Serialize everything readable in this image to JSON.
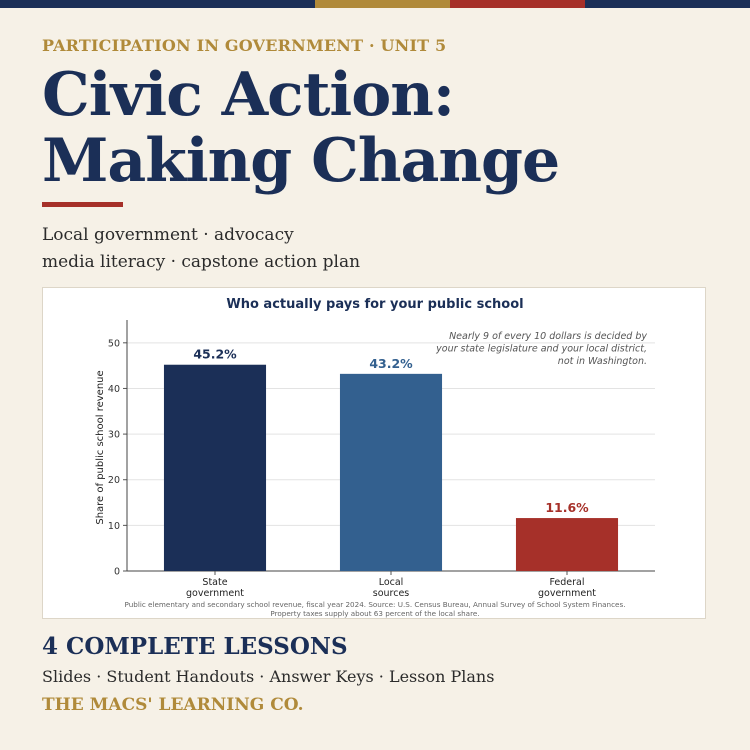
{
  "header": {
    "eyebrow": "PARTICIPATION IN GOVERNMENT  ·  UNIT 5",
    "title": "Civic Action: Making Change",
    "subtitle_line1": "Local government · advocacy",
    "subtitle_line2": "media literacy · capstone action plan"
  },
  "footer": {
    "lessons": "4 COMPLETE LESSONS",
    "materials": "Slides · Student Handouts · Answer Keys · Lesson Plans",
    "brand": "THE MACS' LEARNING CO."
  },
  "colors": {
    "navy": "#1b2f57",
    "gold": "#b08a3a",
    "red": "#a63029",
    "blue": "#33608f",
    "background": "#f6f1e7",
    "top_bar": [
      "#1b2f57",
      "#b08a3a",
      "#a63029",
      "#1b2f57"
    ]
  },
  "chart_data": {
    "type": "bar",
    "title": "Who actually pays for your public school",
    "ylabel": "Share of public school revenue",
    "xlabel": "",
    "categories": [
      [
        "State",
        "government"
      ],
      [
        "Local",
        "sources"
      ],
      [
        "Federal",
        "government"
      ]
    ],
    "values": [
      45.2,
      43.2,
      11.6
    ],
    "value_labels": [
      "45.2%",
      "43.2%",
      "11.6%"
    ],
    "bar_colors": [
      "#1b2f57",
      "#33608f",
      "#a63029"
    ],
    "ylim": [
      0,
      55
    ],
    "yticks": [
      0,
      10,
      20,
      30,
      40,
      50
    ],
    "grid": true,
    "annotation": [
      "Nearly 9 of every 10 dollars is decided by",
      "your state legislature and your local district,",
      "not in Washington."
    ],
    "source_note": [
      "Public elementary and secondary school revenue, fiscal year 2024. Source: U.S. Census Bureau, Annual Survey of School System Finances.",
      "Property taxes supply about 63 percent of the local share."
    ]
  }
}
